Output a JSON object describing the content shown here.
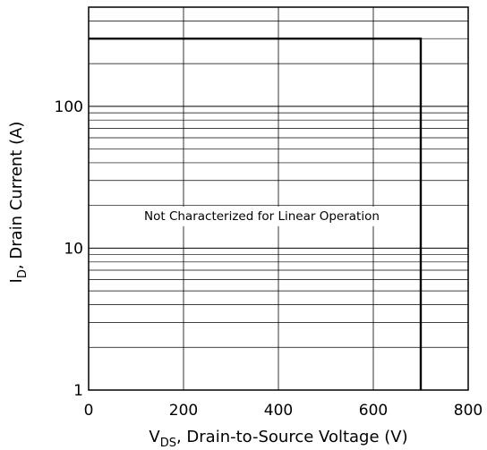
{
  "chart_data": {
    "type": "line",
    "title": "",
    "xlabel": {
      "main": "V",
      "sub": "DS",
      "rest": ", Drain-to-Source Voltage (V)"
    },
    "ylabel": {
      "main": "I",
      "sub": "D",
      "rest": ", Drain Current (A)"
    },
    "xlim": [
      0,
      800
    ],
    "ylim": [
      1,
      500
    ],
    "yscale": "log",
    "grid": true,
    "xticks": [
      0,
      200,
      400,
      600,
      800
    ],
    "xtick_labels": [
      "0",
      "200",
      "400",
      "600",
      "800"
    ],
    "yticks": [
      1,
      10,
      100
    ],
    "ytick_labels": [
      "1",
      "10",
      "100"
    ],
    "series": [
      {
        "x": [
          0,
          700,
          700
        ],
        "y": [
          300,
          300,
          1
        ]
      }
    ],
    "annotations": [
      {
        "text": "Not Characterized for Linear Operation",
        "x": 365,
        "y": 17
      }
    ]
  }
}
